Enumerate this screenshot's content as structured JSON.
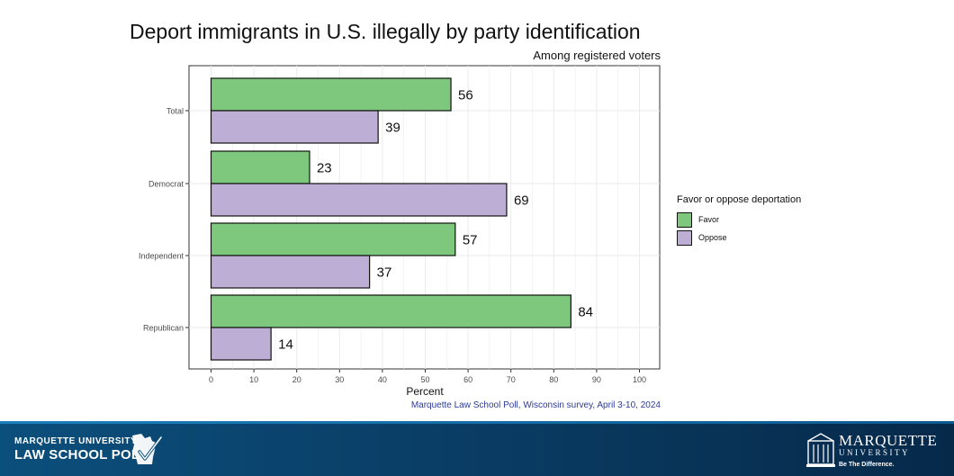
{
  "slide": {
    "title": "Deport immigrants in U.S. illegally by party identification",
    "subtitle": "Among registered voters",
    "source": "Marquette Law School Poll, Wisconsin survey, April 3-10, 2024"
  },
  "chart_data": {
    "type": "bar",
    "orientation": "horizontal",
    "categories": [
      "Total",
      "Democrat",
      "Independent",
      "Republican"
    ],
    "series": [
      {
        "name": "Favor",
        "color": "#7ec87e",
        "values": [
          56,
          23,
          57,
          84
        ]
      },
      {
        "name": "Oppose",
        "color": "#bdaed6",
        "values": [
          39,
          69,
          37,
          14
        ]
      }
    ],
    "title": "Deport immigrants in U.S. illegally by party identification",
    "subtitle": "Among registered voters",
    "xlabel": "Percent",
    "ylabel": "",
    "xlim": [
      0,
      100
    ],
    "x_ticks": [
      0,
      10,
      20,
      30,
      40,
      50,
      60,
      70,
      80,
      90,
      100
    ],
    "grid": true,
    "legend": {
      "title": "Favor or oppose deportation",
      "placement": "right"
    },
    "data_labels": true
  },
  "footer": {
    "left_logo_line1": "MARQUETTE UNIVERSITY",
    "left_logo_line2": "LAW SCHOOL POLL",
    "right_logo_name": "MARQUETTE",
    "right_logo_university": "UNIVERSITY",
    "right_logo_tagline": "Be The Difference.",
    "colors": {
      "bar": "#0b4f7c",
      "text": "#ffffff"
    }
  }
}
